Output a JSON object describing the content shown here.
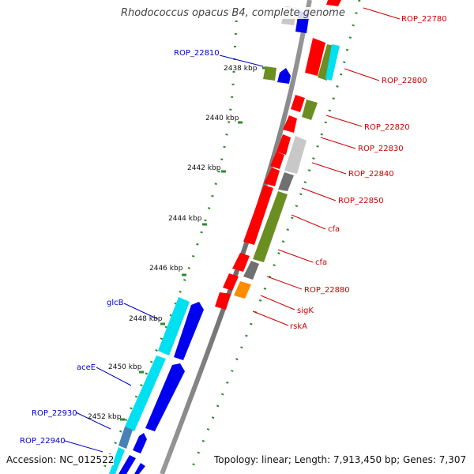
{
  "title": "Rhodococcus opacus B4, complete genome",
  "accession": "Accession: NC_012522",
  "topology": "Topology: linear; Length: 7,913,450 bp; Genes: 7,307",
  "colors": {
    "backbone": "#808080",
    "tick_dots": "#2e8b2e",
    "left_label": "#0000cc",
    "right_label": "#cc0000",
    "red": "#ff0000",
    "blue": "#0000ee",
    "cyan": "#00e0f0",
    "olive": "#6b8e23",
    "gray_light": "#c8c8c8",
    "gray_dark": "#707070",
    "orange": "#ff8c00",
    "steel": "#4682b4"
  },
  "scale_labels": [
    "2438 kbp",
    "2440 kbp",
    "2442 kbp",
    "2444 kbp",
    "2446 kbp",
    "2448 kbp",
    "2450 kbp",
    "2452 kbp"
  ],
  "left_genes": [
    "ROP_22810",
    "glcB",
    "aceE",
    "ROP_22930",
    "ROP_22940"
  ],
  "right_genes": [
    "ROP_22780",
    "ROP_22800",
    "ROP_22820",
    "ROP_22830",
    "ROP_22840",
    "ROP_22850",
    "cfa",
    "cfa",
    "ROP_22880",
    "sigK",
    "rskA"
  ]
}
